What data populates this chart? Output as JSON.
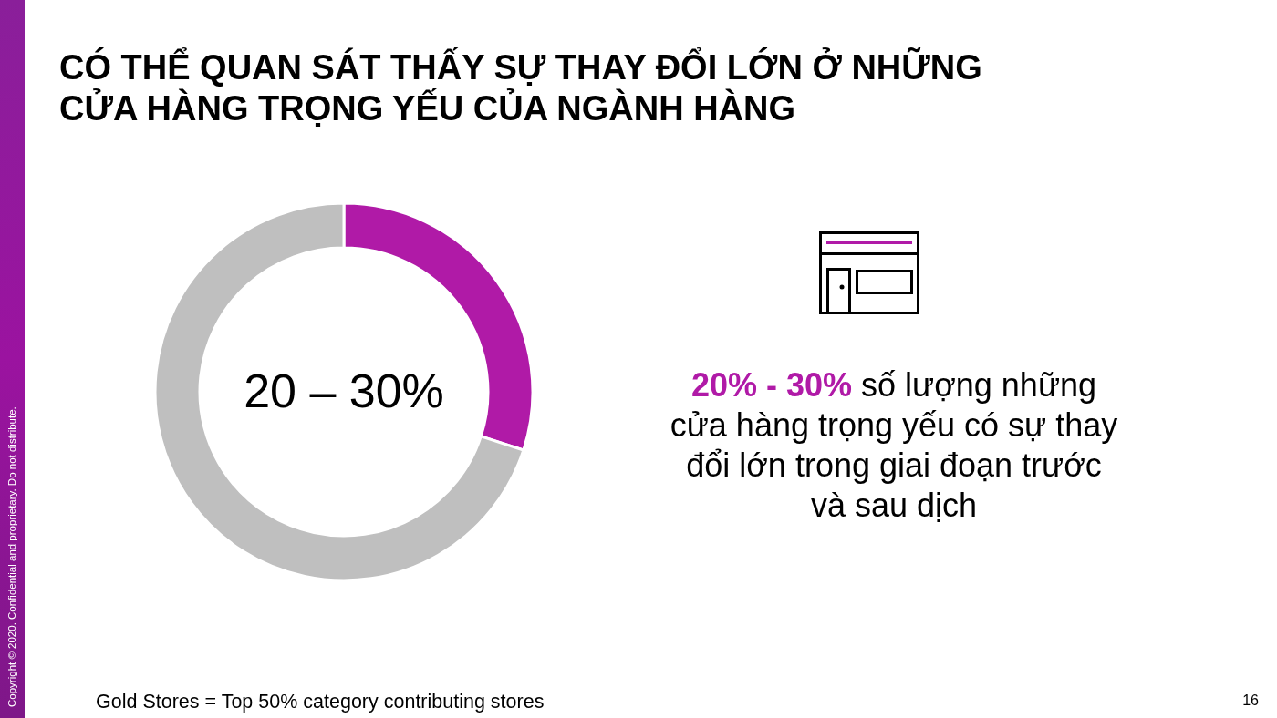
{
  "chart_data": {
    "type": "donut",
    "title": "CÓ THỂ QUAN SÁT THẤY SỰ THAY ĐỔI LỚN Ở NHỮNG CỬA HÀNG TRỌNG YẾU CỦA NGÀNH HÀNG",
    "categories": [
      null,
      null
    ],
    "values": [
      30,
      70
    ],
    "colors": [
      "#b01aa7",
      "#bfbfbf"
    ],
    "annotations": [
      "20 – 30%",
      "20% - 30%",
      "số lượng những cửa hàng trọng yếu có sự thay đổi lớn trong giai đoạn trước và sau dịch",
      "Gold Stores = Top 50% category contributing stores",
      "16",
      "Copyright © 2020. Confidential and proprietary. Do not distribute."
    ]
  }
}
